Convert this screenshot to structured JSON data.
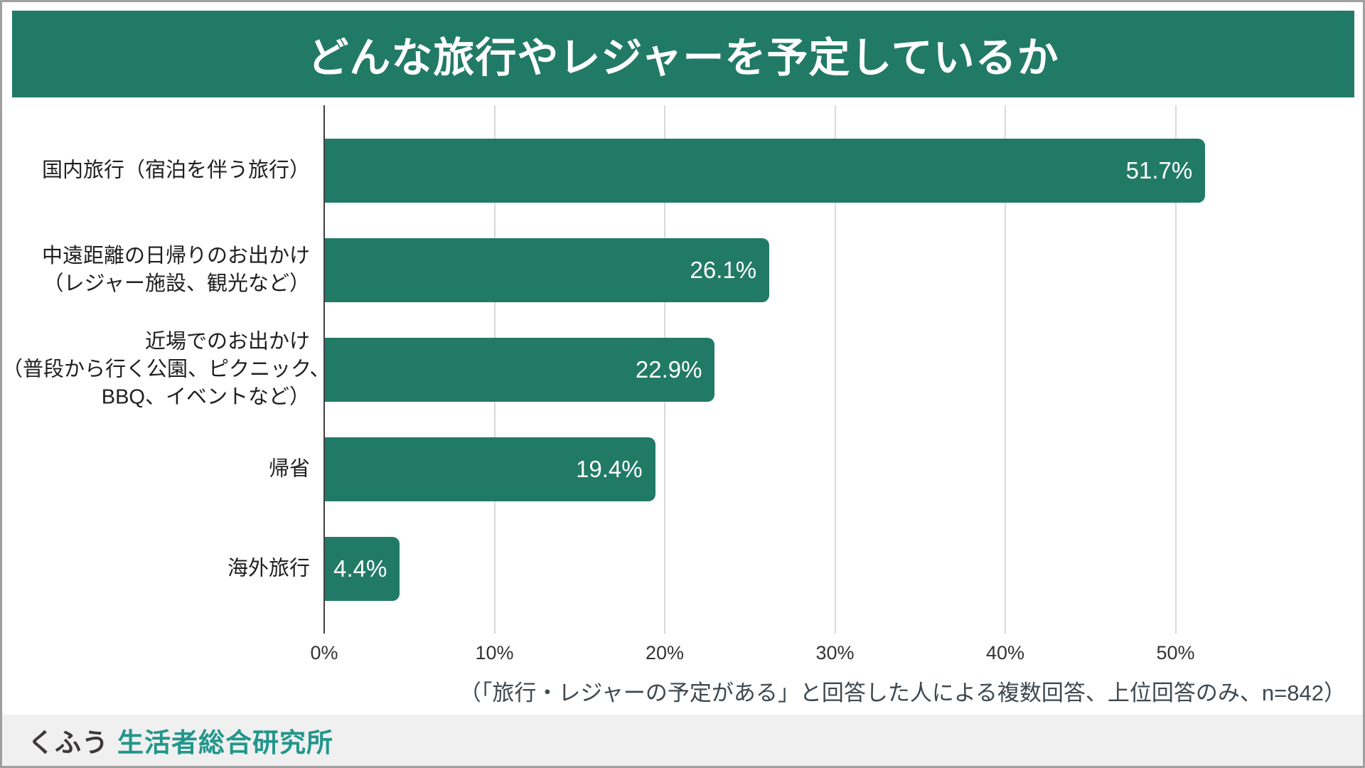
{
  "header": {
    "title": "どんな旅行やレジャーを予定しているか"
  },
  "chart_data": {
    "type": "bar",
    "orientation": "horizontal",
    "title": "どんな旅行やレジャーを予定しているか",
    "categories": [
      [
        "国内旅行（宿泊を伴う旅行）"
      ],
      [
        "中遠距離の日帰りのお出かけ",
        "（レジャー施設、観光など）"
      ],
      [
        "近場でのお出かけ",
        "（普段から行く公園、ピクニック、",
        "BBQ、イベントなど）"
      ],
      [
        "帰省"
      ],
      [
        "海外旅行"
      ]
    ],
    "values": [
      51.7,
      26.1,
      22.9,
      19.4,
      4.4
    ],
    "value_labels": [
      "51.7%",
      "26.1%",
      "22.9%",
      "19.4%",
      "4.4%"
    ],
    "x_tick_values": [
      0,
      10,
      20,
      30,
      40,
      50
    ],
    "x_tick_labels": [
      "0%",
      "10%",
      "20%",
      "30%",
      "40%",
      "50%"
    ],
    "xlim": [
      0,
      60
    ],
    "grid": true,
    "legend": false,
    "bar_color": "#217a66",
    "axis_color": "#404040",
    "gridline_color": "#d9d9d9"
  },
  "footnote": {
    "text": "（「旅行・レジャーの予定がある」と回答した人による複数回答、上位回答のみ、n=842）"
  },
  "footer": {
    "brand_left": "くふう",
    "brand_right": "生活者総合研究所"
  }
}
